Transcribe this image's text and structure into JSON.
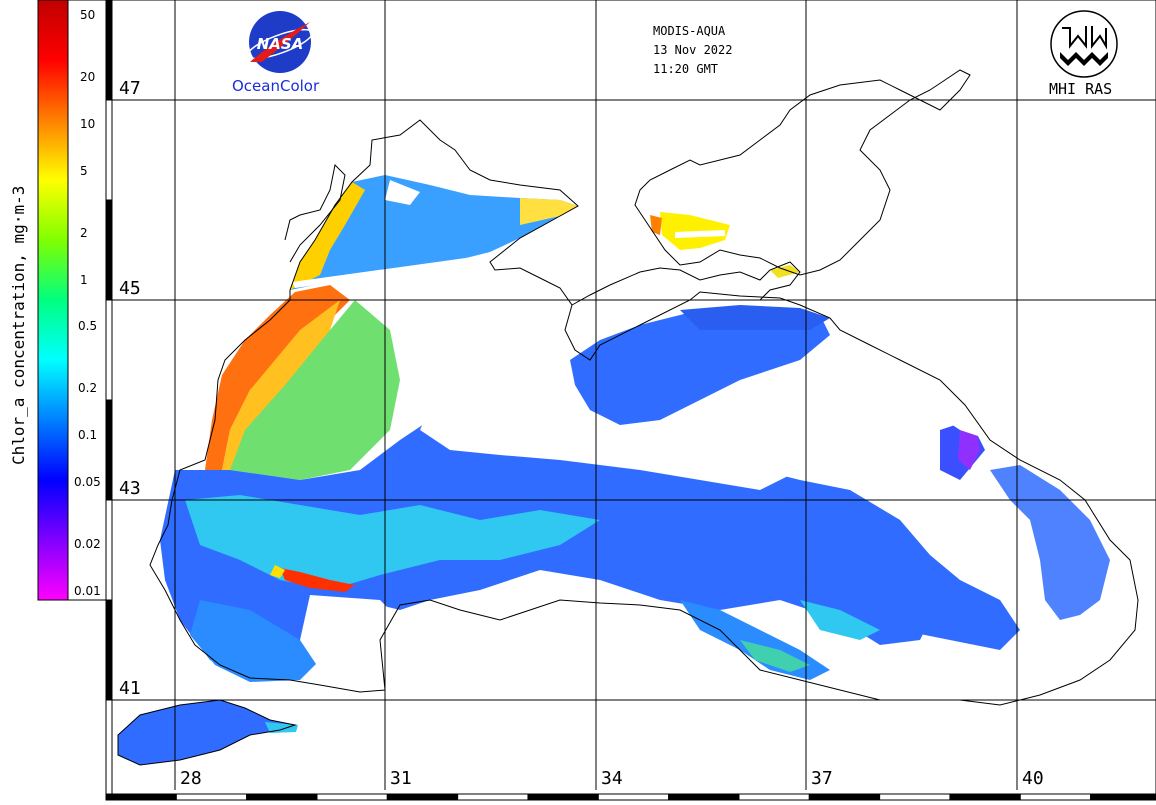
{
  "header": {
    "sensor": "MODIS-AQUA",
    "date": "13 Nov 2022",
    "time": "11:20 GMT"
  },
  "logos": {
    "nasa_text": "NASA",
    "oceancolor_label": "OceanColor",
    "mhi_label": "MHI RAS"
  },
  "colorbar": {
    "title": "Chlor_a concentration, mg·m-3",
    "scale": "log",
    "range": [
      0.01,
      50
    ],
    "ticks": [
      "50",
      "20",
      "10",
      "5",
      "2",
      "1",
      "0.5",
      "0.2",
      "0.1",
      "0.05",
      "0.02",
      "0.01"
    ],
    "colors": [
      "#ff00ff",
      "#8000ff",
      "#0000ff",
      "#0080ff",
      "#00ffff",
      "#00ff80",
      "#80ff00",
      "#ffff00",
      "#ff8000",
      "#ff0000",
      "#c00000"
    ]
  },
  "map": {
    "latitude_labels": [
      "47",
      "45",
      "43",
      "41"
    ],
    "longitude_labels": [
      "28",
      "31",
      "34",
      "37",
      "40"
    ],
    "land_color": "#ffffff",
    "grid_color": "#000000"
  }
}
